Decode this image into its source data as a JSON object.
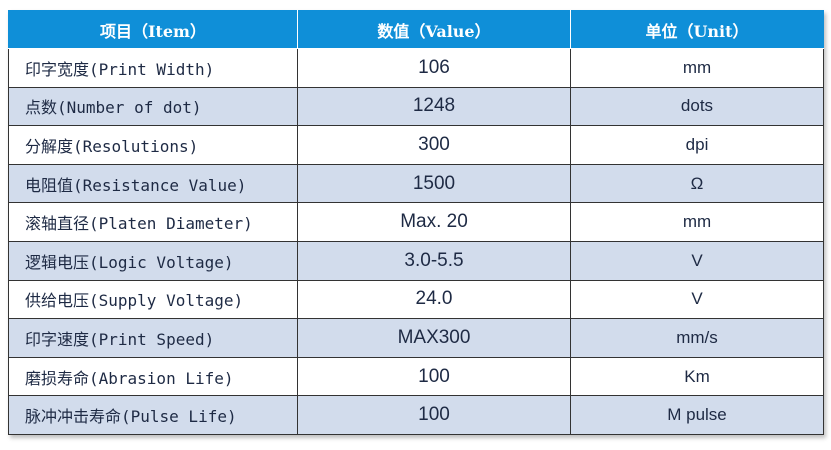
{
  "header": {
    "item": "项目（Item）",
    "value": "数值（Value）",
    "unit": "单位（Unit）"
  },
  "rows": [
    {
      "item": "印字宽度(Print Width)",
      "value": "106",
      "unit": "mm"
    },
    {
      "item": "点数(Number of dot)",
      "value": "1248",
      "unit": "dots"
    },
    {
      "item": "分解度(Resolutions)",
      "value": "300",
      "unit": "dpi"
    },
    {
      "item": "电阻值(Resistance Value)",
      "value": "1500",
      "unit": "Ω"
    },
    {
      "item": "滚轴直径(Platen Diameter)",
      "value": "Max. 20",
      "unit": "mm"
    },
    {
      "item": "逻辑电压(Logic Voltage)",
      "value": "3.0-5.5",
      "unit": "V"
    },
    {
      "item": "供给电压(Supply Voltage)",
      "value": "24.0",
      "unit": "V"
    },
    {
      "item": "印字速度(Print Speed)",
      "value": "MAX300",
      "unit": "mm/s"
    },
    {
      "item": "磨损寿命(Abrasion Life)",
      "value": "100",
      "unit": "Km"
    },
    {
      "item": "脉冲冲击寿命(Pulse Life)",
      "value": "100",
      "unit": "M pulse"
    }
  ],
  "colors": {
    "header_bg": "#0f8fd8",
    "header_text": "#ffffff",
    "stripe_bg": "#d2dcec",
    "text": "#1e2a44"
  }
}
